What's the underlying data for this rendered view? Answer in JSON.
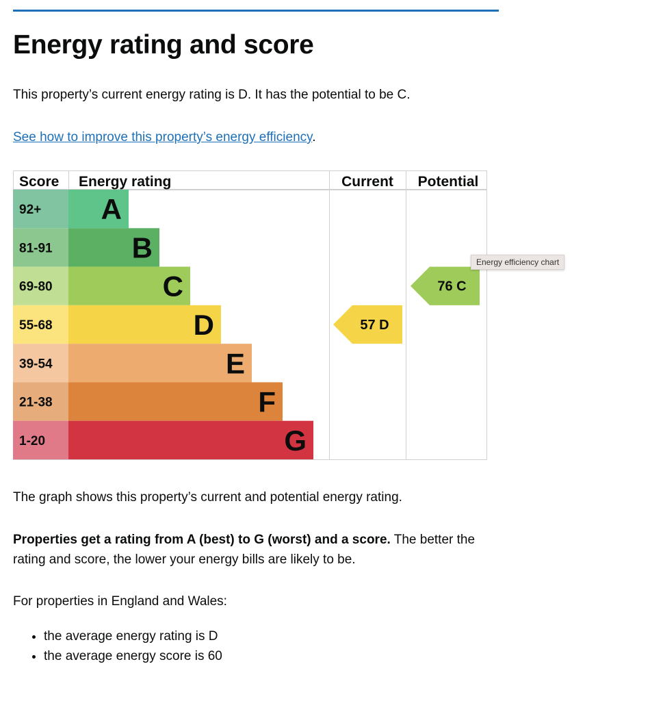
{
  "heading": "Energy rating and score",
  "intro": "This property’s current energy rating is D. It has the potential to be C.",
  "improve_link": "See how to improve this property’s energy efficiency",
  "improve_suffix": ".",
  "chart": {
    "headers": {
      "score": "Score",
      "rating": "Energy rating",
      "current": "Current",
      "potential": "Potential"
    },
    "bands": [
      {
        "letter": "A",
        "range": "92+",
        "color": "#5fc48a",
        "score_color": "#80c4a2"
      },
      {
        "letter": "B",
        "range": "81-91",
        "color": "#5bb063",
        "score_color": "#8cc78f"
      },
      {
        "letter": "C",
        "range": "69-80",
        "color": "#9fcb5a",
        "score_color": "#c1df94"
      },
      {
        "letter": "D",
        "range": "55-68",
        "color": "#f6d448",
        "score_color": "#fbe47e"
      },
      {
        "letter": "E",
        "range": "39-54",
        "color": "#eeab6f",
        "score_color": "#f4c7a0"
      },
      {
        "letter": "F",
        "range": "21-38",
        "color": "#dd843c",
        "score_color": "#e6ac7c"
      },
      {
        "letter": "G",
        "range": "1-20",
        "color": "#d33441",
        "score_color": "#e07a88"
      }
    ],
    "current": {
      "score": "57",
      "letter": "D",
      "color": "#f6d448"
    },
    "potential": {
      "score": "76",
      "letter": "C",
      "color": "#9fcb5a"
    },
    "tooltip": "Energy efficiency chart"
  },
  "graph_text": "The graph shows this property’s current and potential energy rating.",
  "ratings_bold": "Properties get a rating from A (best) to G (worst) and a score.",
  "ratings_rest": " The better the rating and score, the lower your energy bills are likely to be.",
  "region_text": "For properties in England and Wales:",
  "bullets": [
    "the average energy rating is D",
    "the average energy score is 60"
  ]
}
